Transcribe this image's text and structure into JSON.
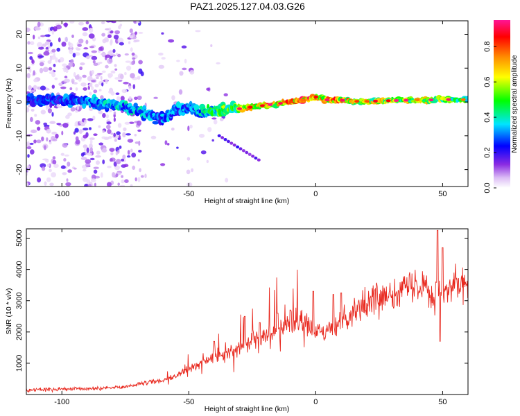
{
  "title": "PAZ1.2025.127.04.03.G26",
  "chart_data": [
    {
      "type": "heatmap",
      "xlabel": "Height of straight line (km)",
      "ylabel": "Frequency (Hz)",
      "xlim": [
        -114,
        60
      ],
      "ylim": [
        -25,
        24
      ],
      "xticks": [
        -100,
        -50,
        0,
        50
      ],
      "yticks": [
        -20,
        -10,
        0,
        10,
        20
      ],
      "colorbar": {
        "label": "Normalized spectral amplitude",
        "range": [
          0.0,
          0.95
        ],
        "ticks": [
          "0.0",
          "0.2",
          "0.4",
          "0.6",
          "0.8"
        ],
        "colors": [
          "#ffffff",
          "#8a2be2",
          "#0000ff",
          "#00e5ff",
          "#00ff00",
          "#ffff00",
          "#ff8c00",
          "#ff0000",
          "#ff1493"
        ]
      },
      "ridge": {
        "x": [
          -114,
          -100,
          -90,
          -80,
          -70,
          -65,
          -60,
          -55,
          -50,
          -45,
          -40,
          -35,
          -30,
          -25,
          -20,
          -15,
          -10,
          -5,
          0,
          5,
          10,
          15,
          20,
          25,
          30,
          35,
          40,
          45,
          50,
          55,
          60
        ],
        "frequency": [
          0.5,
          0.5,
          0,
          -1,
          -2.5,
          -4,
          -5,
          -2.5,
          -1.5,
          -3,
          -2.5,
          -2,
          -2,
          -1.5,
          -1,
          -0.5,
          0,
          0.5,
          1.5,
          0.5,
          0.5,
          0.2,
          0.2,
          0.3,
          0.4,
          0.5,
          0.6,
          0.6,
          0.7,
          0.7,
          0.7
        ],
        "amplitude": [
          0.3,
          0.3,
          0.35,
          0.4,
          0.4,
          0.35,
          0.35,
          0.35,
          0.35,
          0.4,
          0.5,
          0.6,
          0.65,
          0.75,
          0.8,
          0.8,
          0.82,
          0.85,
          0.85,
          0.8,
          0.8,
          0.75,
          0.7,
          0.7,
          0.65,
          0.65,
          0.75,
          0.6,
          0.6,
          0.55,
          0.55
        ]
      }
    },
    {
      "type": "line",
      "xlabel": "Height of straight line (km)",
      "ylabel": "SNR (10 * v/v)",
      "xlim": [
        -114,
        60
      ],
      "ylim": [
        0,
        5300
      ],
      "xticks": [
        -100,
        -50,
        0,
        50
      ],
      "yticks": [
        1000,
        2000,
        3000,
        4000,
        5000
      ],
      "color": "#e8281e",
      "series": [
        {
          "x": [
            -114,
            -105,
            -95,
            -85,
            -75,
            -70,
            -65,
            -60,
            -55,
            -50,
            -45,
            -40,
            -35,
            -30,
            -25,
            -20,
            -15,
            -10,
            -5,
            0,
            5,
            10,
            15,
            20,
            25,
            30,
            35,
            40,
            42,
            45,
            47,
            48,
            49,
            50,
            55,
            60
          ],
          "y": [
            150,
            160,
            170,
            200,
            250,
            320,
            400,
            450,
            600,
            800,
            1000,
            1200,
            1300,
            1500,
            1800,
            1950,
            2100,
            2250,
            2350,
            1950,
            2000,
            2400,
            2700,
            2900,
            3100,
            3300,
            3400,
            3500,
            3650,
            3400,
            3000,
            3800,
            3200,
            3300,
            3500,
            3450
          ]
        }
      ],
      "spikes": [
        {
          "x": -40,
          "y": 1700
        },
        {
          "x": -28,
          "y": 2500
        },
        {
          "x": -22,
          "y": 2300
        },
        {
          "x": -15,
          "y": 2600
        },
        {
          "x": -10,
          "y": 2700
        },
        {
          "x": -1,
          "y": 3300
        },
        {
          "x": 7,
          "y": 3200
        },
        {
          "x": 10,
          "y": 3250
        },
        {
          "x": 48,
          "y": 5250
        },
        {
          "x": 49,
          "y": 1700
        },
        {
          "x": 50,
          "y": 4700
        }
      ]
    }
  ]
}
